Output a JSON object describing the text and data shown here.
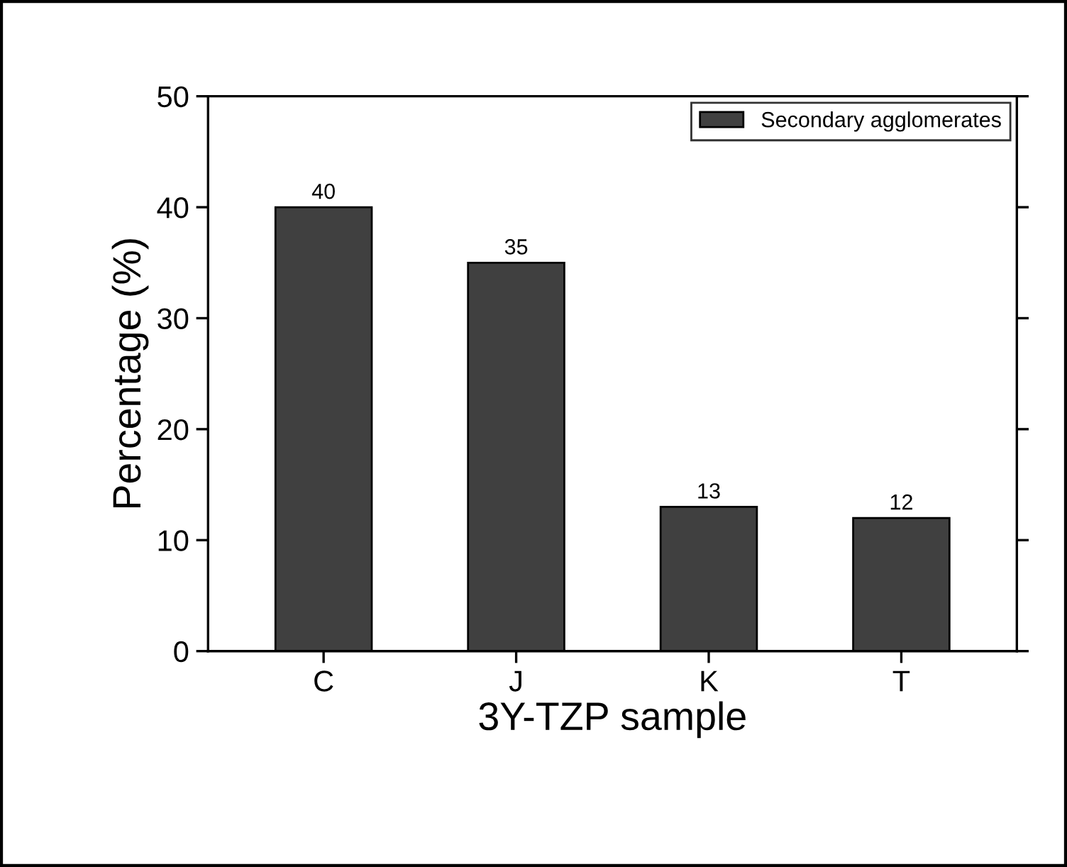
{
  "chart_data": {
    "type": "bar",
    "xlabel": "3Y-TZP sample",
    "ylabel": "Percentage (%)",
    "categories": [
      "C",
      "J",
      "K",
      "T"
    ],
    "series": [
      {
        "name": "Secondary agglomerates",
        "color": "#404040",
        "values": [
          40,
          35,
          13,
          12
        ]
      }
    ],
    "ylim": [
      0,
      50
    ],
    "yticks": [
      0,
      10,
      20,
      30,
      40,
      50
    ],
    "data_labels": true,
    "legend": "top right",
    "grid": false
  }
}
